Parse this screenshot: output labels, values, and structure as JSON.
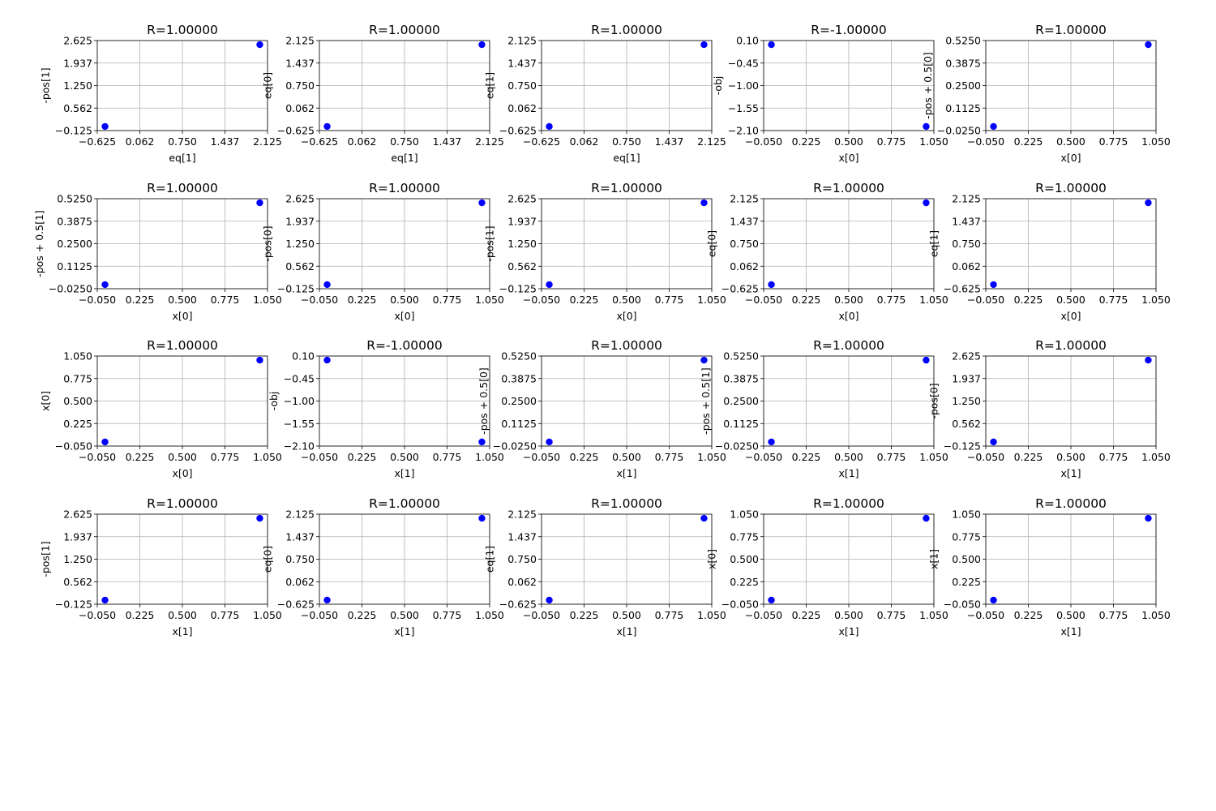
{
  "colors": {
    "marker": "#0000ff",
    "grid": "#b0b0b0",
    "axis": "#000000",
    "background": "#ffffff"
  },
  "chart_data": [
    {
      "type": "scatter",
      "title": "R=1.00000",
      "xlabel": "eq[1]",
      "ylabel": "-pos[1]",
      "xlim": [
        -0.625,
        2.125
      ],
      "ylim": [
        -0.125,
        2.625
      ],
      "xticks": [
        "−0.625",
        "0.062",
        "0.750",
        "1.437",
        "2.125"
      ],
      "yticks": [
        "−0.125",
        "0.562",
        "1.250",
        "1.937",
        "2.625"
      ],
      "x": [
        -0.5,
        2.0
      ],
      "y": [
        0.0,
        2.5
      ],
      "grid": true
    },
    {
      "type": "scatter",
      "title": "R=1.00000",
      "xlabel": "eq[1]",
      "ylabel": "eq[0]",
      "xlim": [
        -0.625,
        2.125
      ],
      "ylim": [
        -0.625,
        2.125
      ],
      "xticks": [
        "−0.625",
        "0.062",
        "0.750",
        "1.437",
        "2.125"
      ],
      "yticks": [
        "−0.625",
        "0.062",
        "0.750",
        "1.437",
        "2.125"
      ],
      "x": [
        -0.5,
        2.0
      ],
      "y": [
        -0.5,
        2.0
      ],
      "grid": true
    },
    {
      "type": "scatter",
      "title": "R=1.00000",
      "xlabel": "eq[1]",
      "ylabel": "eq[1]",
      "xlim": [
        -0.625,
        2.125
      ],
      "ylim": [
        -0.625,
        2.125
      ],
      "xticks": [
        "−0.625",
        "0.062",
        "0.750",
        "1.437",
        "2.125"
      ],
      "yticks": [
        "−0.625",
        "0.062",
        "0.750",
        "1.437",
        "2.125"
      ],
      "x": [
        -0.5,
        2.0
      ],
      "y": [
        -0.5,
        2.0
      ],
      "grid": true
    },
    {
      "type": "scatter",
      "title": "R=-1.00000",
      "xlabel": "x[0]",
      "ylabel": "-obj",
      "xlim": [
        -0.05,
        1.05
      ],
      "ylim": [
        -2.1,
        0.1
      ],
      "xticks": [
        "−0.050",
        "0.225",
        "0.500",
        "0.775",
        "1.050"
      ],
      "yticks": [
        "−2.10",
        "−1.55",
        "−1.00",
        "−0.45",
        "0.10"
      ],
      "x": [
        0.0,
        1.0
      ],
      "y": [
        0.0,
        -2.0
      ],
      "grid": true
    },
    {
      "type": "scatter",
      "title": "R=1.00000",
      "xlabel": "x[0]",
      "ylabel": "-pos + 0.5[0]",
      "xlim": [
        -0.05,
        1.05
      ],
      "ylim": [
        -0.025,
        0.525
      ],
      "xticks": [
        "−0.050",
        "0.225",
        "0.500",
        "0.775",
        "1.050"
      ],
      "yticks": [
        "−0.0250",
        "0.1125",
        "0.2500",
        "0.3875",
        "0.5250"
      ],
      "x": [
        0.0,
        1.0
      ],
      "y": [
        0.0,
        0.5
      ],
      "grid": true
    },
    {
      "type": "scatter",
      "title": "R=1.00000",
      "xlabel": "x[0]",
      "ylabel": "-pos + 0.5[1]",
      "xlim": [
        -0.05,
        1.05
      ],
      "ylim": [
        -0.025,
        0.525
      ],
      "xticks": [
        "−0.050",
        "0.225",
        "0.500",
        "0.775",
        "1.050"
      ],
      "yticks": [
        "−0.0250",
        "0.1125",
        "0.2500",
        "0.3875",
        "0.5250"
      ],
      "x": [
        0.0,
        1.0
      ],
      "y": [
        0.0,
        0.5
      ],
      "grid": true
    },
    {
      "type": "scatter",
      "title": "R=1.00000",
      "xlabel": "x[0]",
      "ylabel": "-pos[0]",
      "xlim": [
        -0.05,
        1.05
      ],
      "ylim": [
        -0.125,
        2.625
      ],
      "xticks": [
        "−0.050",
        "0.225",
        "0.500",
        "0.775",
        "1.050"
      ],
      "yticks": [
        "−0.125",
        "0.562",
        "1.250",
        "1.937",
        "2.625"
      ],
      "x": [
        0.0,
        1.0
      ],
      "y": [
        0.0,
        2.5
      ],
      "grid": true
    },
    {
      "type": "scatter",
      "title": "R=1.00000",
      "xlabel": "x[0]",
      "ylabel": "-pos[1]",
      "xlim": [
        -0.05,
        1.05
      ],
      "ylim": [
        -0.125,
        2.625
      ],
      "xticks": [
        "−0.050",
        "0.225",
        "0.500",
        "0.775",
        "1.050"
      ],
      "yticks": [
        "−0.125",
        "0.562",
        "1.250",
        "1.937",
        "2.625"
      ],
      "x": [
        0.0,
        1.0
      ],
      "y": [
        0.0,
        2.5
      ],
      "grid": true
    },
    {
      "type": "scatter",
      "title": "R=1.00000",
      "xlabel": "x[0]",
      "ylabel": "eq[0]",
      "xlim": [
        -0.05,
        1.05
      ],
      "ylim": [
        -0.625,
        2.125
      ],
      "xticks": [
        "−0.050",
        "0.225",
        "0.500",
        "0.775",
        "1.050"
      ],
      "yticks": [
        "−0.625",
        "0.062",
        "0.750",
        "1.437",
        "2.125"
      ],
      "x": [
        0.0,
        1.0
      ],
      "y": [
        -0.5,
        2.0
      ],
      "grid": true
    },
    {
      "type": "scatter",
      "title": "R=1.00000",
      "xlabel": "x[0]",
      "ylabel": "eq[1]",
      "xlim": [
        -0.05,
        1.05
      ],
      "ylim": [
        -0.625,
        2.125
      ],
      "xticks": [
        "−0.050",
        "0.225",
        "0.500",
        "0.775",
        "1.050"
      ],
      "yticks": [
        "−0.625",
        "0.062",
        "0.750",
        "1.437",
        "2.125"
      ],
      "x": [
        0.0,
        1.0
      ],
      "y": [
        -0.5,
        2.0
      ],
      "grid": true
    },
    {
      "type": "scatter",
      "title": "R=1.00000",
      "xlabel": "x[0]",
      "ylabel": "x[0]",
      "xlim": [
        -0.05,
        1.05
      ],
      "ylim": [
        -0.05,
        1.05
      ],
      "xticks": [
        "−0.050",
        "0.225",
        "0.500",
        "0.775",
        "1.050"
      ],
      "yticks": [
        "−0.050",
        "0.225",
        "0.500",
        "0.775",
        "1.050"
      ],
      "x": [
        0.0,
        1.0
      ],
      "y": [
        0.0,
        1.0
      ],
      "grid": true
    },
    {
      "type": "scatter",
      "title": "R=-1.00000",
      "xlabel": "x[1]",
      "ylabel": "-obj",
      "xlim": [
        -0.05,
        1.05
      ],
      "ylim": [
        -2.1,
        0.1
      ],
      "xticks": [
        "−0.050",
        "0.225",
        "0.500",
        "0.775",
        "1.050"
      ],
      "yticks": [
        "−2.10",
        "−1.55",
        "−1.00",
        "−0.45",
        "0.10"
      ],
      "x": [
        0.0,
        1.0
      ],
      "y": [
        0.0,
        -2.0
      ],
      "grid": true
    },
    {
      "type": "scatter",
      "title": "R=1.00000",
      "xlabel": "x[1]",
      "ylabel": "-pos + 0.5[0]",
      "xlim": [
        -0.05,
        1.05
      ],
      "ylim": [
        -0.025,
        0.525
      ],
      "xticks": [
        "−0.050",
        "0.225",
        "0.500",
        "0.775",
        "1.050"
      ],
      "yticks": [
        "−0.0250",
        "0.1125",
        "0.2500",
        "0.3875",
        "0.5250"
      ],
      "x": [
        0.0,
        1.0
      ],
      "y": [
        0.0,
        0.5
      ],
      "grid": true
    },
    {
      "type": "scatter",
      "title": "R=1.00000",
      "xlabel": "x[1]",
      "ylabel": "-pos + 0.5[1]",
      "xlim": [
        -0.05,
        1.05
      ],
      "ylim": [
        -0.025,
        0.525
      ],
      "xticks": [
        "−0.050",
        "0.225",
        "0.500",
        "0.775",
        "1.050"
      ],
      "yticks": [
        "−0.0250",
        "0.1125",
        "0.2500",
        "0.3875",
        "0.5250"
      ],
      "x": [
        0.0,
        1.0
      ],
      "y": [
        0.0,
        0.5
      ],
      "grid": true
    },
    {
      "type": "scatter",
      "title": "R=1.00000",
      "xlabel": "x[1]",
      "ylabel": "-pos[0]",
      "xlim": [
        -0.05,
        1.05
      ],
      "ylim": [
        -0.125,
        2.625
      ],
      "xticks": [
        "−0.050",
        "0.225",
        "0.500",
        "0.775",
        "1.050"
      ],
      "yticks": [
        "−0.125",
        "0.562",
        "1.250",
        "1.937",
        "2.625"
      ],
      "x": [
        0.0,
        1.0
      ],
      "y": [
        0.0,
        2.5
      ],
      "grid": true
    },
    {
      "type": "scatter",
      "title": "R=1.00000",
      "xlabel": "x[1]",
      "ylabel": "-pos[1]",
      "xlim": [
        -0.05,
        1.05
      ],
      "ylim": [
        -0.125,
        2.625
      ],
      "xticks": [
        "−0.050",
        "0.225",
        "0.500",
        "0.775",
        "1.050"
      ],
      "yticks": [
        "−0.125",
        "0.562",
        "1.250",
        "1.937",
        "2.625"
      ],
      "x": [
        0.0,
        1.0
      ],
      "y": [
        0.0,
        2.5
      ],
      "grid": true
    },
    {
      "type": "scatter",
      "title": "R=1.00000",
      "xlabel": "x[1]",
      "ylabel": "eq[0]",
      "xlim": [
        -0.05,
        1.05
      ],
      "ylim": [
        -0.625,
        2.125
      ],
      "xticks": [
        "−0.050",
        "0.225",
        "0.500",
        "0.775",
        "1.050"
      ],
      "yticks": [
        "−0.625",
        "0.062",
        "0.750",
        "1.437",
        "2.125"
      ],
      "x": [
        0.0,
        1.0
      ],
      "y": [
        -0.5,
        2.0
      ],
      "grid": true
    },
    {
      "type": "scatter",
      "title": "R=1.00000",
      "xlabel": "x[1]",
      "ylabel": "eq[1]",
      "xlim": [
        -0.05,
        1.05
      ],
      "ylim": [
        -0.625,
        2.125
      ],
      "xticks": [
        "−0.050",
        "0.225",
        "0.500",
        "0.775",
        "1.050"
      ],
      "yticks": [
        "−0.625",
        "0.062",
        "0.750",
        "1.437",
        "2.125"
      ],
      "x": [
        0.0,
        1.0
      ],
      "y": [
        -0.5,
        2.0
      ],
      "grid": true
    },
    {
      "type": "scatter",
      "title": "R=1.00000",
      "xlabel": "x[1]",
      "ylabel": "x[0]",
      "xlim": [
        -0.05,
        1.05
      ],
      "ylim": [
        -0.05,
        1.05
      ],
      "xticks": [
        "−0.050",
        "0.225",
        "0.500",
        "0.775",
        "1.050"
      ],
      "yticks": [
        "−0.050",
        "0.225",
        "0.500",
        "0.775",
        "1.050"
      ],
      "x": [
        0.0,
        1.0
      ],
      "y": [
        0.0,
        1.0
      ],
      "grid": true
    },
    {
      "type": "scatter",
      "title": "R=1.00000",
      "xlabel": "x[1]",
      "ylabel": "x[1]",
      "xlim": [
        -0.05,
        1.05
      ],
      "ylim": [
        -0.05,
        1.05
      ],
      "xticks": [
        "−0.050",
        "0.225",
        "0.500",
        "0.775",
        "1.050"
      ],
      "yticks": [
        "−0.050",
        "0.225",
        "0.500",
        "0.775",
        "1.050"
      ],
      "x": [
        0.0,
        1.0
      ],
      "y": [
        0.0,
        1.0
      ],
      "grid": true
    }
  ]
}
